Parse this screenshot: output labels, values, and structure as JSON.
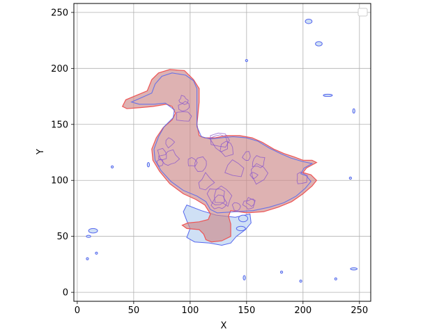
{
  "chart_data": {
    "type": "area",
    "title": "",
    "xlabel": "X",
    "ylabel": "Y",
    "xlim": [
      -3,
      260
    ],
    "ylim": [
      -8,
      258
    ],
    "xticks": [
      0,
      50,
      100,
      150,
      200,
      250
    ],
    "yticks": [
      0,
      50,
      100,
      150,
      200,
      250
    ],
    "grid": true,
    "legend": {
      "placement": "top-right",
      "entries": []
    },
    "colors": {
      "red_edge": "#ee5555",
      "red_fill": "#cc8888",
      "blue_edge": "#5566ee",
      "blue_fill": "#cfe0f5",
      "grid": "#b0b0b0"
    },
    "series": [
      {
        "role": "outline",
        "points": [
          [
            103,
            190
          ],
          [
            95,
            198
          ],
          [
            82,
            199
          ],
          [
            72,
            196
          ],
          [
            66,
            190
          ],
          [
            62,
            180
          ],
          [
            55,
            177
          ],
          [
            43,
            172
          ],
          [
            40,
            166
          ],
          [
            44,
            164
          ],
          [
            56,
            165
          ],
          [
            67,
            166
          ],
          [
            79,
            168
          ],
          [
            84,
            166
          ],
          [
            87,
            160
          ],
          [
            84,
            154
          ],
          [
            76,
            147
          ],
          [
            70,
            138
          ],
          [
            66,
            128
          ],
          [
            67,
            118
          ],
          [
            73,
            108
          ],
          [
            82,
            97
          ],
          [
            94,
            88
          ],
          [
            105,
            83
          ],
          [
            113,
            78
          ],
          [
            118,
            70
          ],
          [
            116,
            65
          ],
          [
            108,
            63
          ],
          [
            98,
            62
          ],
          [
            93,
            60
          ],
          [
            97,
            57
          ],
          [
            108,
            56
          ],
          [
            112,
            52
          ],
          [
            114,
            47
          ],
          [
            119,
            45
          ],
          [
            128,
            46
          ],
          [
            136,
            50
          ],
          [
            136,
            61
          ],
          [
            134,
            68
          ],
          [
            136,
            73
          ],
          [
            150,
            71
          ],
          [
            165,
            72
          ],
          [
            178,
            76
          ],
          [
            190,
            81
          ],
          [
            200,
            88
          ],
          [
            208,
            95
          ],
          [
            212,
            100
          ],
          [
            207,
            105
          ],
          [
            200,
            107
          ],
          [
            203,
            111
          ],
          [
            212,
            116
          ],
          [
            208,
            118
          ],
          [
            200,
            118
          ],
          [
            192,
            121
          ],
          [
            183,
            124
          ],
          [
            174,
            128
          ],
          [
            164,
            134
          ],
          [
            155,
            138
          ],
          [
            144,
            140
          ],
          [
            132,
            140
          ],
          [
            122,
            138
          ],
          [
            113,
            138
          ],
          [
            108,
            140
          ],
          [
            106,
            150
          ],
          [
            107,
            160
          ],
          [
            108,
            170
          ],
          [
            108,
            182
          ]
        ]
      },
      {
        "role": "segments",
        "points": [
          [
            103,
            189
          ],
          [
            96,
            194
          ],
          [
            84,
            196
          ],
          [
            75,
            193
          ],
          [
            69,
            186
          ],
          [
            66,
            178
          ],
          [
            57,
            174
          ],
          [
            48,
            170
          ],
          [
            55,
            168
          ],
          [
            68,
            168
          ],
          [
            78,
            169
          ],
          [
            86,
            163
          ],
          [
            85,
            156
          ],
          [
            77,
            148
          ],
          [
            72,
            139
          ],
          [
            68,
            128
          ],
          [
            69,
            118
          ],
          [
            74,
            109
          ],
          [
            83,
            99
          ],
          [
            94,
            91
          ],
          [
            106,
            86
          ],
          [
            114,
            81
          ],
          [
            118,
            74
          ],
          [
            124,
            71
          ],
          [
            140,
            72
          ],
          [
            156,
            73
          ],
          [
            170,
            76
          ],
          [
            183,
            80
          ],
          [
            194,
            86
          ],
          [
            202,
            93
          ],
          [
            207,
            99
          ],
          [
            203,
            104
          ],
          [
            198,
            106
          ],
          [
            201,
            111
          ],
          [
            208,
            115
          ],
          [
            199,
            117
          ],
          [
            189,
            120
          ],
          [
            180,
            124
          ],
          [
            170,
            129
          ],
          [
            160,
            135
          ],
          [
            150,
            138
          ],
          [
            138,
            139
          ],
          [
            127,
            138
          ],
          [
            118,
            137
          ],
          [
            110,
            139
          ],
          [
            106,
            148
          ],
          [
            106,
            160
          ],
          [
            106,
            172
          ],
          [
            106,
            182
          ]
        ]
      },
      {
        "role": "regions",
        "points": [
          [
            97,
            78
          ],
          [
            110,
            73
          ],
          [
            123,
            69
          ],
          [
            140,
            67
          ],
          [
            153,
            70
          ],
          [
            154,
            62
          ],
          [
            149,
            56
          ],
          [
            141,
            50
          ],
          [
            136,
            44
          ],
          [
            128,
            42
          ],
          [
            117,
            44
          ],
          [
            104,
            45
          ],
          [
            97,
            49
          ],
          [
            100,
            57
          ],
          [
            97,
            64
          ],
          [
            94,
            72
          ]
        ]
      }
    ],
    "small_regions": [
      {
        "x": 205,
        "y": 242,
        "rx": 3,
        "ry": 2
      },
      {
        "x": 214,
        "y": 222,
        "rx": 3,
        "ry": 2
      },
      {
        "x": 222,
        "y": 176,
        "rx": 4,
        "ry": 1
      },
      {
        "x": 245,
        "y": 162,
        "rx": 1,
        "ry": 2
      },
      {
        "x": 14,
        "y": 55,
        "rx": 4,
        "ry": 2
      },
      {
        "x": 10,
        "y": 50,
        "rx": 2,
        "ry": 1
      },
      {
        "x": 147,
        "y": 66,
        "rx": 4,
        "ry": 3
      },
      {
        "x": 145,
        "y": 57,
        "rx": 4,
        "ry": 2
      },
      {
        "x": 245,
        "y": 21,
        "rx": 3,
        "ry": 1
      },
      {
        "x": 198,
        "y": 10,
        "rx": 1,
        "ry": 1
      },
      {
        "x": 229,
        "y": 12,
        "rx": 1,
        "ry": 1
      },
      {
        "x": 148,
        "y": 13,
        "rx": 1,
        "ry": 2
      },
      {
        "x": 181,
        "y": 18,
        "rx": 1,
        "ry": 1
      },
      {
        "x": 242,
        "y": 102,
        "rx": 1,
        "ry": 1
      },
      {
        "x": 31,
        "y": 112,
        "rx": 1,
        "ry": 1
      },
      {
        "x": 63,
        "y": 114,
        "rx": 1,
        "ry": 2
      },
      {
        "x": 17,
        "y": 35,
        "rx": 1,
        "ry": 1
      },
      {
        "x": 9,
        "y": 30,
        "rx": 1,
        "ry": 1
      },
      {
        "x": 150,
        "y": 207,
        "rx": 1,
        "ry": 1
      }
    ]
  }
}
